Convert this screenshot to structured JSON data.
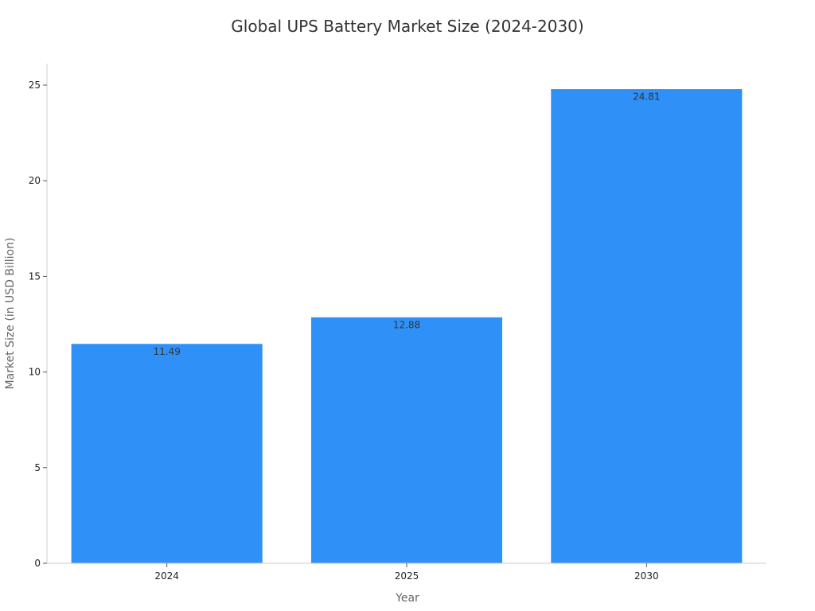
{
  "chart_data": {
    "type": "bar",
    "title": "Global UPS Battery Market Size (2024-2030)",
    "xlabel": "Year",
    "ylabel": "Market Size (in USD Billion)",
    "categories": [
      "2024",
      "2025",
      "2030"
    ],
    "values": [
      11.49,
      12.88,
      24.81
    ],
    "data_labels": [
      "11.49",
      "12.88",
      "24.81"
    ],
    "y_ticks": [
      0,
      5,
      10,
      15,
      20,
      25
    ],
    "ylim": [
      0,
      26.1
    ],
    "bar_color": "#2f91f7",
    "grid": false,
    "legend": "none"
  }
}
